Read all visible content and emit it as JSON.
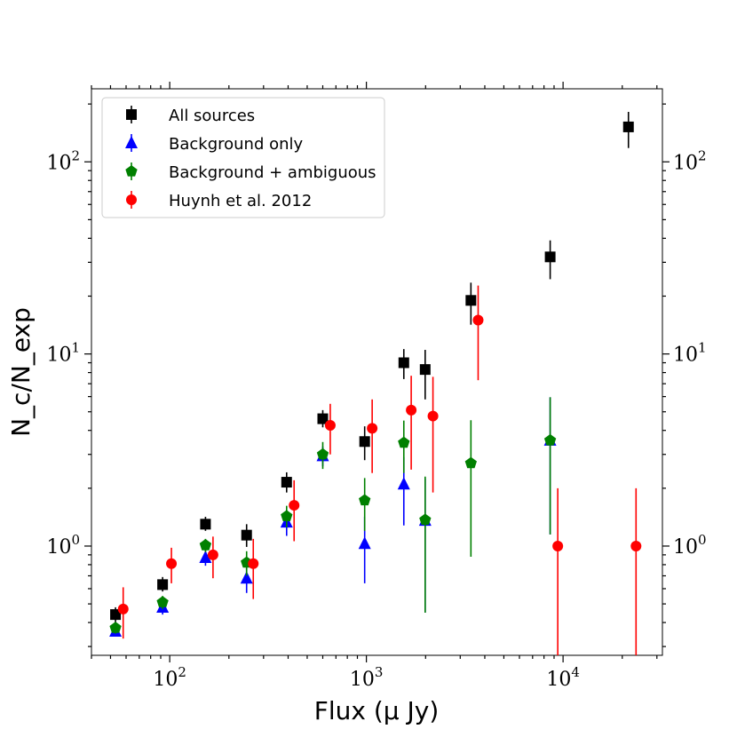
{
  "chart_data": {
    "type": "scatter",
    "title": "",
    "xlabel": "Flux (μ Jy)",
    "ylabel": "N_c/N_exp",
    "xscale": "log",
    "yscale": "log",
    "xlim": [
      40,
      32000
    ],
    "ylim": [
      0.27,
      240
    ],
    "x_ticks": [
      {
        "value": 100,
        "base": "10",
        "exp": "2"
      },
      {
        "value": 1000,
        "base": "10",
        "exp": "3"
      },
      {
        "value": 10000,
        "base": "10",
        "exp": "4"
      }
    ],
    "y_ticks": [
      {
        "value": 1,
        "base": "10",
        "exp": "0"
      },
      {
        "value": 10,
        "base": "10",
        "exp": "1"
      },
      {
        "value": 100,
        "base": "10",
        "exp": "2"
      }
    ],
    "legend_position": "top-left",
    "series": [
      {
        "name": "All sources",
        "color": "#000000",
        "marker": "square",
        "points": [
          {
            "x": 53,
            "y": 0.44,
            "lo": 0.4,
            "hi": 0.48
          },
          {
            "x": 92,
            "y": 0.63,
            "lo": 0.58,
            "hi": 0.69
          },
          {
            "x": 152,
            "y": 1.3,
            "lo": 1.2,
            "hi": 1.42
          },
          {
            "x": 246,
            "y": 1.14,
            "lo": 0.99,
            "hi": 1.3
          },
          {
            "x": 393,
            "y": 2.15,
            "lo": 1.9,
            "hi": 2.42
          },
          {
            "x": 600,
            "y": 4.6,
            "lo": 4.15,
            "hi": 5.1
          },
          {
            "x": 980,
            "y": 3.5,
            "lo": 2.8,
            "hi": 4.2
          },
          {
            "x": 1550,
            "y": 9.0,
            "lo": 7.4,
            "hi": 10.6
          },
          {
            "x": 1990,
            "y": 8.3,
            "lo": 5.8,
            "hi": 10.5
          },
          {
            "x": 3400,
            "y": 19.0,
            "lo": 14.2,
            "hi": 23.5
          },
          {
            "x": 8600,
            "y": 32.0,
            "lo": 24.5,
            "hi": 39.0
          },
          {
            "x": 21500,
            "y": 152.0,
            "lo": 118.0,
            "hi": 182.0
          }
        ]
      },
      {
        "name": "Background only",
        "color": "#0000ff",
        "marker": "triangle",
        "points": [
          {
            "x": 53,
            "y": 0.36,
            "lo": 0.34,
            "hi": 0.4
          },
          {
            "x": 92,
            "y": 0.48,
            "lo": 0.44,
            "hi": 0.52
          },
          {
            "x": 152,
            "y": 0.87,
            "lo": 0.79,
            "hi": 0.95
          },
          {
            "x": 246,
            "y": 0.68,
            "lo": 0.57,
            "hi": 0.79
          },
          {
            "x": 393,
            "y": 1.33,
            "lo": 1.13,
            "hi": 1.52
          },
          {
            "x": 600,
            "y": 2.95,
            "lo": 2.6,
            "hi": 3.3
          },
          {
            "x": 980,
            "y": 1.03,
            "lo": 0.64,
            "hi": 1.42
          },
          {
            "x": 1550,
            "y": 2.1,
            "lo": 1.28,
            "hi": 2.9
          },
          {
            "x": 1990,
            "y": 1.36,
            "lo": 0.45,
            "hi": 2.25
          },
          {
            "x": 8600,
            "y": 3.55,
            "lo": 1.15,
            "hi": 5.95
          }
        ]
      },
      {
        "name": "Background + ambiguous",
        "color": "#008000",
        "marker": "pentagon",
        "points": [
          {
            "x": 53,
            "y": 0.375,
            "lo": 0.35,
            "hi": 0.4
          },
          {
            "x": 92,
            "y": 0.51,
            "lo": 0.47,
            "hi": 0.55
          },
          {
            "x": 152,
            "y": 1.01,
            "lo": 0.93,
            "hi": 1.09
          },
          {
            "x": 246,
            "y": 0.82,
            "lo": 0.7,
            "hi": 0.94
          },
          {
            "x": 393,
            "y": 1.43,
            "lo": 1.25,
            "hi": 1.62
          },
          {
            "x": 600,
            "y": 3.0,
            "lo": 2.52,
            "hi": 3.48
          },
          {
            "x": 980,
            "y": 1.73,
            "lo": 1.2,
            "hi": 2.26
          },
          {
            "x": 1550,
            "y": 3.45,
            "lo": 2.4,
            "hi": 4.5
          },
          {
            "x": 1990,
            "y": 1.37,
            "lo": 0.45,
            "hi": 2.3
          },
          {
            "x": 3400,
            "y": 2.7,
            "lo": 0.88,
            "hi": 4.52
          },
          {
            "x": 8600,
            "y": 3.55,
            "lo": 1.15,
            "hi": 5.95
          }
        ]
      },
      {
        "name": "Huynh et al. 2012",
        "color": "#ff0000",
        "marker": "circle",
        "points": [
          {
            "x": 58,
            "y": 0.47,
            "lo": 0.33,
            "hi": 0.61
          },
          {
            "x": 102,
            "y": 0.81,
            "lo": 0.64,
            "hi": 0.98
          },
          {
            "x": 166,
            "y": 0.9,
            "lo": 0.68,
            "hi": 1.12
          },
          {
            "x": 266,
            "y": 0.81,
            "lo": 0.53,
            "hi": 1.09
          },
          {
            "x": 429,
            "y": 1.63,
            "lo": 1.06,
            "hi": 2.2
          },
          {
            "x": 655,
            "y": 4.25,
            "lo": 3.0,
            "hi": 5.5
          },
          {
            "x": 1070,
            "y": 4.1,
            "lo": 2.4,
            "hi": 5.8
          },
          {
            "x": 1690,
            "y": 5.1,
            "lo": 2.5,
            "hi": 7.7
          },
          {
            "x": 2180,
            "y": 4.75,
            "lo": 1.9,
            "hi": 7.6
          },
          {
            "x": 3700,
            "y": 15.0,
            "lo": 7.3,
            "hi": 22.7
          },
          {
            "x": 9400,
            "y": 1.0,
            "lo": 0.01,
            "hi": 2.0
          },
          {
            "x": 23500,
            "y": 1.0,
            "lo": 0.01,
            "hi": 2.0
          }
        ]
      }
    ]
  }
}
